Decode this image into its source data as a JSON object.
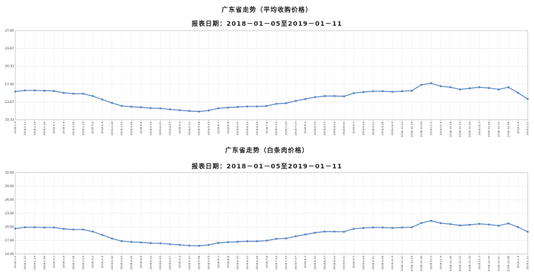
{
  "chart_data": [
    {
      "type": "line",
      "title": "广东省走势（平均收购价格）",
      "subtitle": "报表日期：2018－01－05至2019－01－11",
      "ylim": [
        10.33,
        27.0
      ],
      "yticks": [
        "27.00",
        "23.67",
        "20.33",
        "17.00",
        "13.67",
        "10.33"
      ],
      "grid": true,
      "color": "#5b86c5",
      "x": [
        "2018-1-5",
        "2018-1-12",
        "2018-1-19",
        "2018-1-26",
        "2018-2-2",
        "2018-2-9",
        "2018-2-16",
        "2018-2-23",
        "2018-3-2",
        "2018-3-9",
        "2018-3-16",
        "2018-3-23",
        "2018-3-30",
        "2018-4-6",
        "2018-4-13",
        "2018-4-20",
        "2018-4-27",
        "2018-5-4",
        "2018-5-11",
        "2018-5-18",
        "2018-5-25",
        "2018-6-1",
        "2018-6-8",
        "2018-6-15",
        "2018-6-22",
        "2018-6-29",
        "2018-7-6",
        "2018-7-13",
        "2018-7-20",
        "2018-7-27",
        "2018-8-3",
        "2018-8-10",
        "2018-8-17",
        "2018-8-24",
        "2018-8-31",
        "2018-9-7",
        "2018-9-14",
        "2018-9-21",
        "2018-9-28",
        "2018-10-5",
        "2018-10-12",
        "2018-10-19",
        "2018-10-26",
        "2018-11-2",
        "2018-11-9",
        "2018-11-16",
        "2018-11-23",
        "2018-11-30",
        "2018-12-7",
        "2018-12-14",
        "2018-12-21",
        "2018-12-28",
        "2019-1-4",
        "2019-1-11"
      ],
      "values": [
        15.6,
        15.8,
        15.8,
        15.75,
        15.7,
        15.35,
        15.2,
        15.2,
        14.75,
        14.1,
        13.45,
        12.9,
        12.75,
        12.65,
        12.5,
        12.45,
        12.25,
        12.1,
        11.95,
        11.85,
        12.05,
        12.45,
        12.6,
        12.7,
        12.8,
        12.8,
        12.9,
        13.3,
        13.4,
        13.85,
        14.2,
        14.55,
        14.75,
        14.75,
        14.7,
        15.3,
        15.5,
        15.65,
        15.65,
        15.55,
        15.65,
        15.75,
        16.85,
        17.15,
        16.6,
        16.4,
        16.0,
        16.2,
        16.4,
        16.25,
        16.0,
        16.4,
        15.35,
        14.2
      ]
    },
    {
      "type": "line",
      "title": "广东省走势（白条肉价格）",
      "subtitle": "报表日期：2018－01－05至2019－01－11",
      "ylim": [
        14.0,
        32.0
      ],
      "yticks": [
        "32.00",
        "29.00",
        "26.00",
        "23.00",
        "20.00",
        "17.00",
        "14.00"
      ],
      "grid": true,
      "color": "#5b86c5",
      "x": [
        "2018-1-5",
        "2018-1-12",
        "2018-1-19",
        "2018-1-26",
        "2018-2-2",
        "2018-2-9",
        "2018-2-16",
        "2018-2-23",
        "2018-3-2",
        "2018-3-9",
        "2018-3-16",
        "2018-3-23",
        "2018-3-30",
        "2018-4-6",
        "2018-4-13",
        "2018-4-20",
        "2018-4-27",
        "2018-5-4",
        "2018-5-11",
        "2018-5-18",
        "2018-5-25",
        "2018-6-1",
        "2018-6-8",
        "2018-6-15",
        "2018-6-22",
        "2018-6-29",
        "2018-7-6",
        "2018-7-13",
        "2018-7-20",
        "2018-7-27",
        "2018-8-3",
        "2018-8-10",
        "2018-8-17",
        "2018-8-24",
        "2018-8-31",
        "2018-9-7",
        "2018-9-14",
        "2018-9-21",
        "2018-9-28",
        "2018-10-5",
        "2018-10-12",
        "2018-10-19",
        "2018-10-26",
        "2018-11-2",
        "2018-11-9",
        "2018-11-16",
        "2018-11-23",
        "2018-11-30",
        "2018-12-7",
        "2018-12-14",
        "2018-12-21",
        "2018-12-28",
        "2019-1-4",
        "2019-1-11"
      ],
      "values": [
        19.6,
        19.9,
        19.9,
        19.85,
        19.85,
        19.55,
        19.4,
        19.4,
        18.95,
        18.2,
        17.4,
        16.85,
        16.65,
        16.55,
        16.4,
        16.35,
        16.15,
        16.0,
        15.85,
        15.8,
        16.0,
        16.45,
        16.6,
        16.7,
        16.8,
        16.8,
        16.95,
        17.35,
        17.45,
        17.9,
        18.3,
        18.7,
        18.95,
        18.95,
        18.9,
        19.55,
        19.75,
        19.85,
        19.85,
        19.75,
        19.85,
        19.9,
        20.85,
        21.35,
        20.8,
        20.6,
        20.3,
        20.45,
        20.65,
        20.5,
        20.25,
        20.75,
        19.95,
        18.9
      ]
    }
  ]
}
